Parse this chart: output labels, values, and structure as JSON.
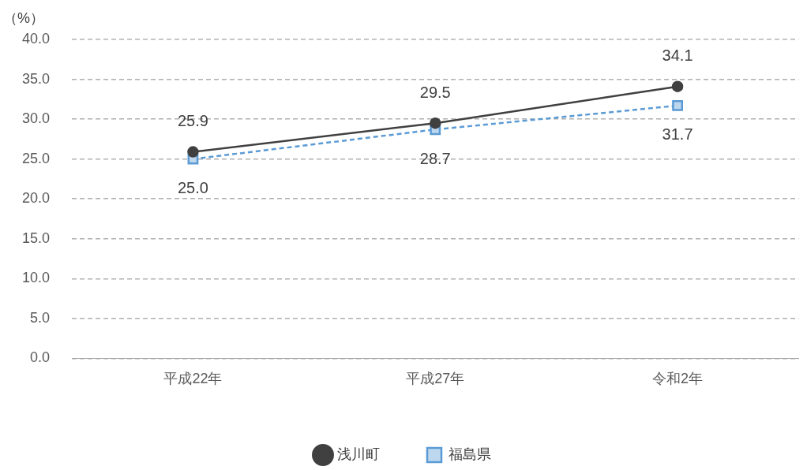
{
  "chart_data": {
    "type": "line",
    "ylabel": "（%）",
    "categories": [
      "平成22年",
      "平成27年",
      "令和2年"
    ],
    "series": [
      {
        "name": "浅川町",
        "color": "#404040",
        "values": [
          25.9,
          29.5,
          34.1
        ],
        "value_labels": [
          "25.9",
          "29.5",
          "34.1"
        ],
        "marker": "circle",
        "line_style": "solid"
      },
      {
        "name": "福島県",
        "color": "#5b9bd5",
        "values": [
          25.0,
          28.7,
          31.7
        ],
        "value_labels": [
          "25.0",
          "28.7",
          "31.7"
        ],
        "marker": "square",
        "line_style": "dashed"
      }
    ],
    "ylim": [
      0,
      40
    ],
    "yticks": [
      {
        "value": 0,
        "label": "0.0"
      },
      {
        "value": 5,
        "label": "5.0"
      },
      {
        "value": 10,
        "label": "10.0"
      },
      {
        "value": 15,
        "label": "15.0"
      },
      {
        "value": 20,
        "label": "20.0"
      },
      {
        "value": 25,
        "label": "25.0"
      },
      {
        "value": 30,
        "label": "30.0"
      },
      {
        "value": 35,
        "label": "35.0"
      },
      {
        "value": 40,
        "label": "40.0"
      }
    ],
    "grid": "y",
    "legend": "bottom"
  }
}
